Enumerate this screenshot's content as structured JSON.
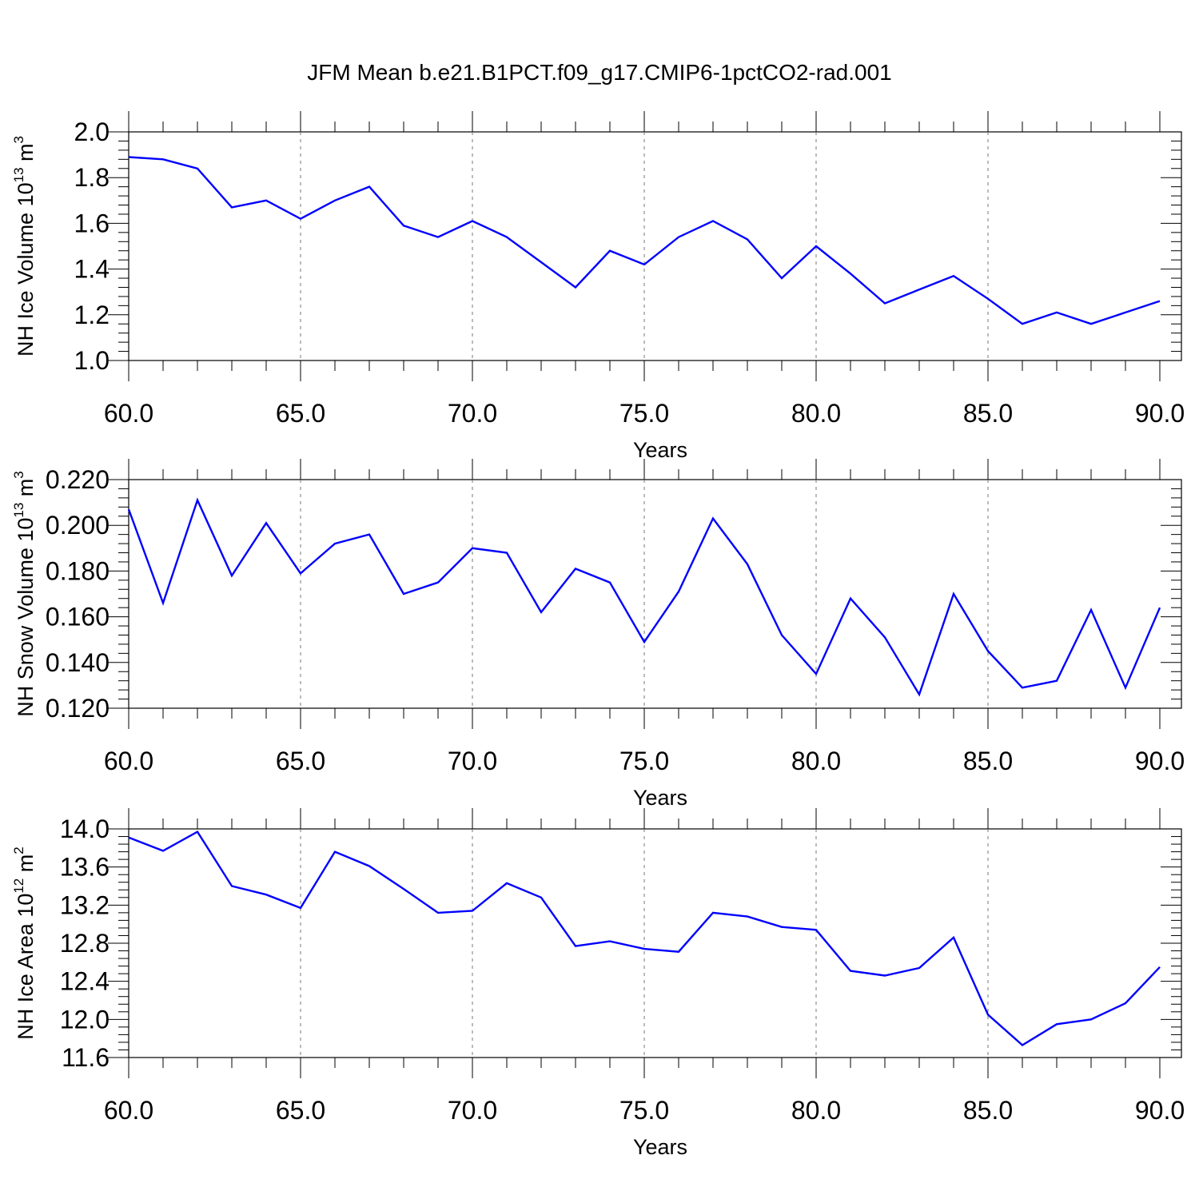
{
  "title": "JFM Mean b.e21.B1PCT.f09_g17.CMIP6-1pctCO2-rad.001",
  "chart_data": [
    {
      "type": "line",
      "xlabel": "Years",
      "ylabel": "NH Ice Volume 10",
      "ylabel_exp": "13",
      "ylabel_unit": " m",
      "ylabel_unit_exp": "3",
      "xlim": [
        60,
        90
      ],
      "ylim": [
        1.0,
        2.0
      ],
      "xticks": [
        "60.0",
        "65.0",
        "70.0",
        "75.0",
        "80.0",
        "85.0",
        "90.0"
      ],
      "yticks": [
        "1.0",
        "1.2",
        "1.4",
        "1.6",
        "1.8",
        "2.0"
      ],
      "grid": "vertical-dashed",
      "color": "#0000ff",
      "x": [
        60,
        61,
        62,
        63,
        64,
        65,
        66,
        67,
        68,
        69,
        70,
        71,
        72,
        73,
        74,
        75,
        76,
        77,
        78,
        79,
        80,
        81,
        82,
        83,
        84,
        85,
        86,
        87,
        88,
        89,
        90
      ],
      "y": [
        1.89,
        1.88,
        1.84,
        1.67,
        1.7,
        1.62,
        1.7,
        1.76,
        1.59,
        1.54,
        1.61,
        1.54,
        1.43,
        1.32,
        1.48,
        1.42,
        1.54,
        1.61,
        1.53,
        1.36,
        1.5,
        1.38,
        1.25,
        1.31,
        1.37,
        1.27,
        1.16,
        1.21,
        1.16,
        1.21,
        1.26
      ]
    },
    {
      "type": "line",
      "xlabel": "Years",
      "ylabel": "NH Snow Volume 10",
      "ylabel_exp": "13",
      "ylabel_unit": " m",
      "ylabel_unit_exp": "3",
      "xlim": [
        60,
        90
      ],
      "ylim": [
        0.12,
        0.22
      ],
      "xticks": [
        "60.0",
        "65.0",
        "70.0",
        "75.0",
        "80.0",
        "85.0",
        "90.0"
      ],
      "yticks": [
        "0.120",
        "0.140",
        "0.160",
        "0.180",
        "0.200",
        "0.220"
      ],
      "grid": "vertical-dashed",
      "color": "#0000ff",
      "x": [
        60,
        61,
        62,
        63,
        64,
        65,
        66,
        67,
        68,
        69,
        70,
        71,
        72,
        73,
        74,
        75,
        76,
        77,
        78,
        79,
        80,
        81,
        82,
        83,
        84,
        85,
        86,
        87,
        88,
        89,
        90
      ],
      "y": [
        0.207,
        0.166,
        0.211,
        0.178,
        0.201,
        0.179,
        0.192,
        0.196,
        0.17,
        0.175,
        0.19,
        0.188,
        0.162,
        0.181,
        0.175,
        0.149,
        0.171,
        0.203,
        0.183,
        0.152,
        0.135,
        0.168,
        0.151,
        0.126,
        0.17,
        0.145,
        0.129,
        0.132,
        0.163,
        0.129,
        0.164
      ]
    },
    {
      "type": "line",
      "xlabel": "Years",
      "ylabel": "NH Ice Area 10",
      "ylabel_exp": "12",
      "ylabel_unit": " m",
      "ylabel_unit_exp": "2",
      "xlim": [
        60,
        90
      ],
      "ylim": [
        11.6,
        14.0
      ],
      "xticks": [
        "60.0",
        "65.0",
        "70.0",
        "75.0",
        "80.0",
        "85.0",
        "90.0"
      ],
      "yticks": [
        "11.6",
        "12.0",
        "12.4",
        "12.8",
        "13.2",
        "13.6",
        "14.0"
      ],
      "grid": "vertical-dashed",
      "color": "#0000ff",
      "x": [
        60,
        61,
        62,
        63,
        64,
        65,
        66,
        67,
        68,
        69,
        70,
        71,
        72,
        73,
        74,
        75,
        76,
        77,
        78,
        79,
        80,
        81,
        82,
        83,
        84,
        85,
        86,
        87,
        88,
        89,
        90
      ],
      "y": [
        13.91,
        13.77,
        13.97,
        13.4,
        13.31,
        13.17,
        13.76,
        13.61,
        13.37,
        13.12,
        13.14,
        13.43,
        13.28,
        12.77,
        12.82,
        12.74,
        12.71,
        13.12,
        13.08,
        12.97,
        12.94,
        12.51,
        12.46,
        12.54,
        12.86,
        12.05,
        11.73,
        11.95,
        12.0,
        12.17,
        12.55
      ]
    }
  ]
}
